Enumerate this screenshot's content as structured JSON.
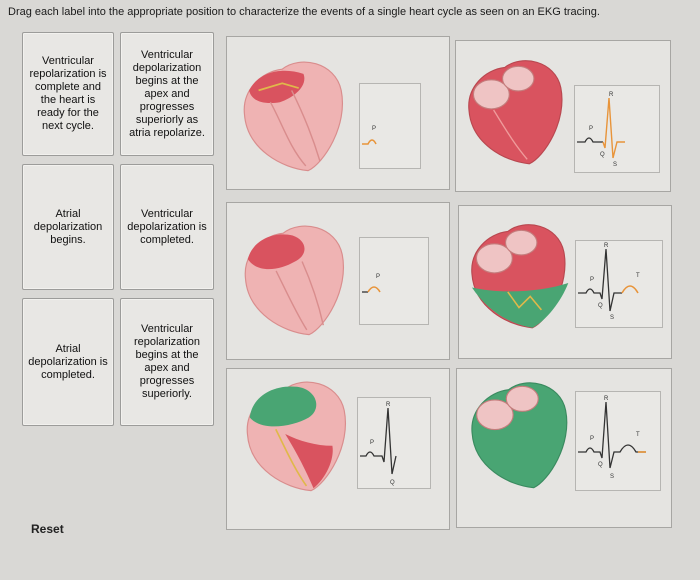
{
  "instructions": "Drag each label into the appropriate position to characterize the events of a single heart cycle as seen on an EKG tracing.",
  "labels": [
    "Ventricular repolarization is complete and the heart is ready for the next cycle.",
    "Ventricular depolarization begins at the apex and progresses superiorly as atria repolarize.",
    "Atrial depolarization begins.",
    "Ventricular depolarization is completed.",
    "Atrial depolarization is completed.",
    "Ventricular repolarization begins at the apex and progresses superiorly."
  ],
  "ekg_letters": {
    "p": "P",
    "q": "Q",
    "r": "R",
    "s": "S",
    "t": "T"
  },
  "reset_label": "Reset",
  "colors": {
    "depolarized": "#d9535f",
    "polarized": "#efb3b3",
    "repolarized": "#49a573",
    "ekg_trace": "#333333",
    "ekg_active": "#e8943a"
  }
}
